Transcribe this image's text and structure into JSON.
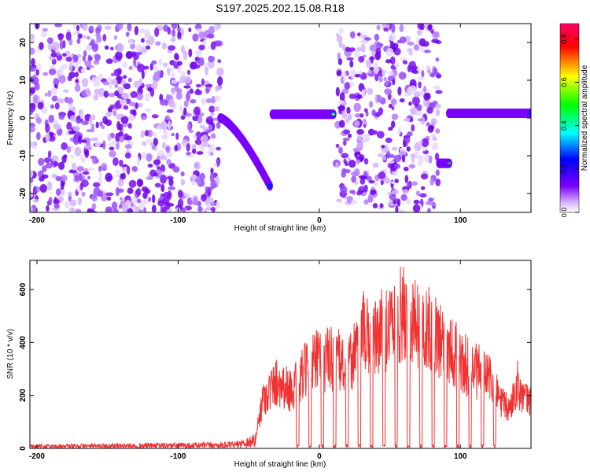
{
  "figure_title": "S197.2025.202.15.08.R18",
  "chart_data": [
    {
      "type": "heatmap",
      "title": "S197.2025.202.15.08.R18",
      "xlabel": "Height of straight line (km)",
      "ylabel": "Frequency (Hz)",
      "xlim": [
        -205,
        150
      ],
      "ylim": [
        -25,
        25
      ],
      "x_ticks": [
        -200,
        -100,
        0,
        100
      ],
      "y_ticks": [
        -20,
        -10,
        0,
        10,
        20
      ],
      "colorbar": {
        "label": "Normalized spectral amplitude",
        "range": [
          0,
          0.87
        ],
        "ticks": [
          0.0,
          0.2,
          0.4,
          0.6,
          0.8
        ],
        "colormap": [
          "#ffffff",
          "#7b00ff",
          "#0000ff",
          "#00ffff",
          "#00ff00",
          "#ffff00",
          "#ff0000",
          "#ff0066"
        ]
      },
      "features": [
        {
          "x_range": [
            -205,
            -70
          ],
          "freq_range": [
            -25,
            25
          ],
          "description": "noise"
        },
        {
          "x_range": [
            -70,
            -35
          ],
          "freq_start": 0,
          "freq_end": -18,
          "description": "curved track"
        },
        {
          "x_range": [
            -33,
            10
          ],
          "freq_range": [
            0,
            2
          ],
          "description": "flat track"
        },
        {
          "x_range": [
            12,
            85
          ],
          "freq_range": [
            -25,
            25
          ],
          "description": "noise"
        },
        {
          "x_range": [
            85,
            92
          ],
          "freq_range": [
            -13,
            -11
          ],
          "description": "short track"
        },
        {
          "x_range": [
            92,
            150
          ],
          "freq_range": [
            0.5,
            2
          ],
          "description": "flat track"
        }
      ],
      "grid": false,
      "legend": "colorbar-right"
    },
    {
      "type": "line",
      "xlabel": "Height of straight line (km)",
      "ylabel": "SNR (10 * v/v)",
      "xlim": [
        -205,
        150
      ],
      "ylim": [
        0,
        710
      ],
      "x_ticks": [
        -200,
        -100,
        0,
        100
      ],
      "y_ticks": [
        0,
        200,
        400,
        600
      ],
      "series": [
        {
          "color": "#f03232",
          "envelope_x": [
            -205,
            -60,
            -45,
            -40,
            -35,
            -30,
            -20,
            -10,
            0,
            10,
            20,
            30,
            40,
            50,
            60,
            70,
            80,
            90,
            100,
            110,
            120,
            125,
            130,
            135,
            140,
            145,
            150
          ],
          "envelope_y": [
            15,
            25,
            60,
            260,
            300,
            350,
            300,
            400,
            460,
            470,
            420,
            600,
            560,
            660,
            700,
            650,
            600,
            560,
            450,
            400,
            380,
            300,
            230,
            200,
            340,
            260,
            240
          ]
        }
      ],
      "grid": false
    }
  ]
}
